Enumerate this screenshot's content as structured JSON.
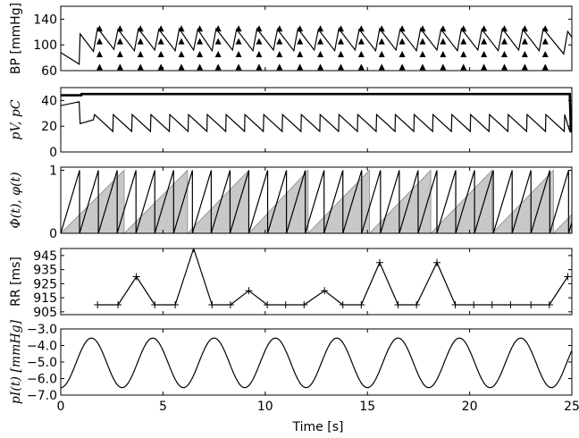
{
  "chart_data": [
    {
      "type": "line",
      "id": "bp",
      "ylabel": "BP [mmHg]",
      "ylim": [
        60,
        160
      ],
      "yticks": [
        60,
        100,
        140
      ],
      "xlim": [
        0,
        25
      ],
      "series": [
        {
          "values": [
            [
              0,
              88
            ],
            [
              0.9,
              70
            ],
            [
              0.95,
              117
            ],
            [
              1.6,
              90
            ],
            [
              1.8,
              126
            ],
            [
              2.6,
              93
            ],
            [
              2.8,
              124
            ],
            [
              3.6,
              91
            ],
            [
              3.8,
              125
            ],
            [
              4.6,
              92
            ],
            [
              4.8,
              124
            ],
            [
              5.6,
              91
            ],
            [
              5.8,
              125
            ],
            [
              6.5,
              92
            ],
            [
              6.7,
              124
            ],
            [
              7.4,
              91
            ],
            [
              7.6,
              125
            ],
            [
              8.4,
              92
            ],
            [
              8.6,
              124
            ],
            [
              9.4,
              91
            ],
            [
              9.6,
              125
            ],
            [
              10.4,
              92
            ],
            [
              10.6,
              124
            ],
            [
              11.4,
              91
            ],
            [
              11.6,
              125
            ],
            [
              12.4,
              92
            ],
            [
              12.6,
              124
            ],
            [
              13.4,
              91
            ],
            [
              13.6,
              125
            ],
            [
              14.4,
              92
            ],
            [
              14.6,
              124
            ],
            [
              15.4,
              91
            ],
            [
              15.6,
              125
            ],
            [
              16.4,
              92
            ],
            [
              16.6,
              124
            ],
            [
              17.4,
              91
            ],
            [
              17.6,
              125
            ],
            [
              18.4,
              92
            ],
            [
              18.6,
              124
            ],
            [
              19.4,
              91
            ],
            [
              19.6,
              125
            ],
            [
              20.4,
              92
            ],
            [
              20.6,
              124
            ],
            [
              21.4,
              91
            ],
            [
              21.6,
              125
            ],
            [
              22.4,
              92
            ],
            [
              22.6,
              124
            ],
            [
              23.4,
              91
            ],
            [
              23.6,
              125
            ],
            [
              24.6,
              86
            ],
            [
              24.8,
              121
            ],
            [
              25,
              112
            ]
          ]
        }
      ],
      "markers_x": [
        1.9,
        2.9,
        3.9,
        4.9,
        5.9,
        6.8,
        7.7,
        8.7,
        9.7,
        10.7,
        11.7,
        12.7,
        13.7,
        14.7,
        15.7,
        16.7,
        17.7,
        18.7,
        19.7,
        20.7,
        21.7,
        22.7,
        23.7
      ],
      "markers_y": [
        125,
        105,
        85,
        65
      ]
    },
    {
      "type": "line",
      "id": "pv",
      "ylabel": "pV, pC",
      "ylim": [
        0,
        50
      ],
      "yticks": [
        0,
        20,
        40
      ],
      "xlim": [
        0,
        25
      ],
      "series": [
        {
          "values": [
            [
              0,
              36
            ],
            [
              0.9,
              39
            ],
            [
              0.95,
              22
            ],
            [
              1.6,
              25
            ],
            [
              1.65,
              29
            ],
            [
              25,
              29
            ]
          ]
        },
        {
          "values": [
            [
              0,
              44
            ],
            [
              1,
              44
            ],
            [
              1.02,
              45
            ],
            [
              24.9,
              45
            ],
            [
              24.95,
              16
            ],
            [
              25,
              16
            ]
          ]
        }
      ],
      "sawtooth": {
        "low": 16,
        "high": 29,
        "period": 0.92,
        "start": 1.65
      }
    },
    {
      "type": "area",
      "id": "phase",
      "ylabel": "Φ(t), φ(t)",
      "ylim": [
        0,
        1.05
      ],
      "yticks": [
        0,
        1
      ],
      "xlim": [
        0,
        25
      ],
      "cardiac_phase_period": 0.92,
      "respiratory_phase_resets": [
        0,
        3.1,
        6.2,
        9.2,
        12.1,
        15.1,
        18.1,
        21.1,
        24.1,
        25
      ]
    },
    {
      "type": "line",
      "id": "rr",
      "ylabel": "RR [ms]",
      "ylim": [
        903,
        950
      ],
      "yticks": [
        905,
        915,
        925,
        935,
        945
      ],
      "xlim": [
        0,
        25
      ],
      "series": [
        {
          "values": [
            [
              1.8,
              910
            ],
            [
              2.8,
              910
            ],
            [
              3.7,
              930
            ],
            [
              4.6,
              910
            ],
            [
              5.6,
              910
            ],
            [
              6.5,
              950
            ],
            [
              7.4,
              910
            ],
            [
              8.3,
              910
            ],
            [
              9.2,
              920
            ],
            [
              10.1,
              910
            ],
            [
              11,
              910
            ],
            [
              11.9,
              910
            ],
            [
              12.9,
              920
            ],
            [
              13.8,
              910
            ],
            [
              14.7,
              910
            ],
            [
              15.6,
              940
            ],
            [
              16.5,
              910
            ],
            [
              17.4,
              910
            ],
            [
              18.4,
              940
            ],
            [
              19.3,
              910
            ],
            [
              20.2,
              910
            ],
            [
              21.1,
              910
            ],
            [
              22,
              910
            ],
            [
              23,
              910
            ],
            [
              23.9,
              910
            ],
            [
              24.8,
              930
            ]
          ]
        }
      ]
    },
    {
      "type": "line",
      "id": "pi",
      "ylabel": "pI(t) [mmHg]",
      "xlabel": "Time [s]",
      "ylim": [
        -7.0,
        -3.0
      ],
      "yticks": [
        -7.0,
        -6.0,
        -5.0,
        -4.0,
        -3.0
      ],
      "ytick_labels": [
        "−7.0",
        "−6.0",
        "−5.0",
        "−4.0",
        "−3.0"
      ],
      "xlim": [
        0,
        25
      ],
      "xticks": [
        0,
        5,
        10,
        15,
        20,
        25
      ],
      "sine": {
        "mean": -5.05,
        "amplitude": 1.5,
        "period": 3.0,
        "phase_t0": -0.75
      }
    }
  ]
}
